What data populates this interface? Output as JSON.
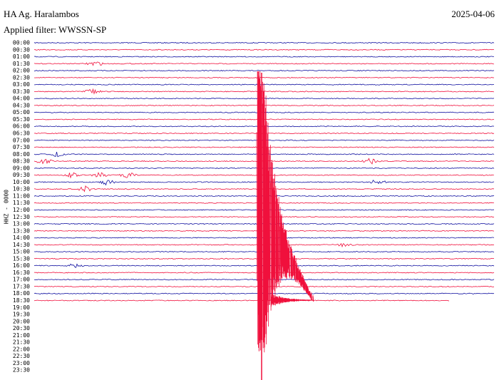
{
  "header": {
    "station": "HA Ag. Haralambos",
    "date": "2025-04-06",
    "filter": "Applied filter: WWSSN-SP"
  },
  "axis_label": "HHZ - 0000",
  "rows": [
    "00:00",
    "00:30",
    "01:00",
    "01:30",
    "02:00",
    "02:30",
    "03:00",
    "03:30",
    "04:00",
    "04:30",
    "05:00",
    "05:30",
    "06:00",
    "06:30",
    "07:00",
    "07:30",
    "08:00",
    "08:30",
    "09:00",
    "09:30",
    "10:00",
    "10:30",
    "11:00",
    "11:30",
    "12:00",
    "12:30",
    "13:00",
    "13:30",
    "14:00",
    "14:30",
    "15:00",
    "15:30",
    "16:00",
    "16:30",
    "17:00",
    "17:30",
    "18:00",
    "18:30",
    "19:00",
    "19:30",
    "20:00",
    "20:30",
    "21:00",
    "21:30",
    "22:00",
    "22:30",
    "23:00",
    "23:30"
  ]
}
